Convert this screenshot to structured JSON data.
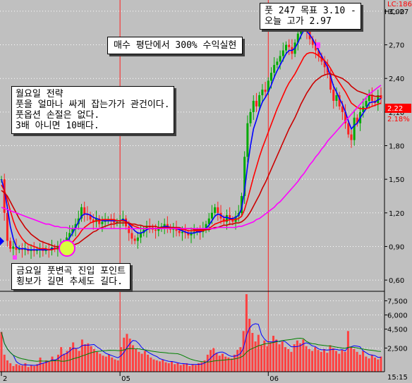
{
  "annotations": {
    "target": [
      "풋 247 목표 3.10 -",
      "오늘 고가 2.97"
    ],
    "headline": "매수 평단에서 300% 수익실현",
    "strategy": [
      "월요일 전략",
      "풋을 얼마나 싸게 잡는가가 관건이다.",
      "풋옵션 손절은 없다.",
      "3배 아니면 10배다."
    ],
    "entry": [
      "금요일 풋변곡 진입 포인트",
      "횡보가 길면 추세도 길다."
    ]
  },
  "corner_labels": {
    "lc": "LC:186",
    "hc": "HC:-27",
    "current": "2.22",
    "change": "2.18%",
    "time": "15:15"
  },
  "colors": {
    "background": "#c0c0c0",
    "grid": "#ffffff",
    "vline": "#ff2020",
    "up_candle": "#00aa00",
    "down_candle": "#ff2020",
    "ma_fast": "#0000ff",
    "ma_mid": "#ff0000",
    "ma_slow": "#cc0000",
    "ma_long": "#ff00ff",
    "volume": "#ff4040",
    "current_box": "#ff0000"
  },
  "chart_data": [
    {
      "type": "line",
      "title": "",
      "y_ticks": [
        "3,00",
        "2,70",
        "2,40",
        "2,10",
        "1,80",
        "1,50",
        "1,20",
        "0,90",
        "0,60"
      ],
      "y_tick_values": [
        3.0,
        2.7,
        2.4,
        2.1,
        1.8,
        1.5,
        1.2,
        0.9,
        0.6
      ],
      "ylim": [
        0.5,
        3.1
      ],
      "x_ticks": [
        "2",
        "05",
        "06"
      ],
      "x_tick_index": [
        0,
        40,
        90
      ],
      "grid": true,
      "candles_close": [
        1.5,
        1.2,
        0.95,
        0.88,
        0.9,
        0.87,
        0.88,
        0.87,
        0.88,
        0.86,
        0.87,
        0.86,
        0.87,
        0.88,
        0.86,
        0.88,
        0.87,
        0.89,
        0.88,
        0.9,
        0.9,
        0.93,
        0.98,
        1.02,
        1.06,
        1.1,
        1.15,
        1.25,
        1.19,
        1.18,
        1.14,
        1.12,
        1.15,
        1.1,
        1.12,
        1.13,
        1.14,
        1.13,
        1.11,
        1.12,
        1.13,
        1.15,
        1.08,
        1.02,
        0.97,
        0.95,
        0.98,
        1.02,
        1.05,
        1.08,
        1.07,
        1.05,
        1.04,
        1.06,
        1.08,
        1.1,
        1.07,
        1.05,
        1.06,
        1.04,
        1.02,
        1.03,
        1.02,
        1.0,
        1.02,
        1.03,
        1.04,
        1.03,
        1.05,
        1.1,
        1.15,
        1.2,
        1.25,
        1.2,
        1.15,
        1.12,
        1.18,
        1.14,
        1.12,
        1.17,
        1.2,
        1.35,
        1.7,
        2.0,
        2.1,
        2.2,
        2.15,
        2.25,
        2.3,
        2.28,
        2.38,
        2.45,
        2.52,
        2.55,
        2.6,
        2.65,
        2.7,
        2.68,
        2.62,
        2.72,
        2.8,
        2.85,
        2.9,
        2.82,
        2.75,
        2.7,
        2.65,
        2.6,
        2.55,
        2.5,
        2.45,
        2.3,
        2.2,
        2.25,
        2.15,
        2.1,
        2.0,
        1.9,
        1.85,
        2.05,
        2.0,
        2.1,
        2.15,
        2.2,
        2.25,
        2.2,
        2.18,
        2.25,
        2.22
      ],
      "series": [
        {
          "values": [
            1.5,
            1.4,
            1.25,
            1.08,
            0.97,
            0.9,
            0.88,
            0.88,
            0.88,
            0.87,
            0.87,
            0.87,
            0.87,
            0.87,
            0.87,
            0.87,
            0.87,
            0.88,
            0.88,
            0.88,
            0.89,
            0.91,
            0.94,
            0.98,
            1.02,
            1.07,
            1.12,
            1.17,
            1.19,
            1.19,
            1.18,
            1.16,
            1.15,
            1.14,
            1.13,
            1.13,
            1.13,
            1.13,
            1.13,
            1.13,
            1.13,
            1.14,
            1.13,
            1.1,
            1.07,
            1.04,
            1.02,
            1.02,
            1.03,
            1.05,
            1.06,
            1.06,
            1.06,
            1.06,
            1.07,
            1.08,
            1.08,
            1.07,
            1.07,
            1.06,
            1.05,
            1.04,
            1.03,
            1.02,
            1.02,
            1.02,
            1.03,
            1.03,
            1.04,
            1.06,
            1.09,
            1.13,
            1.17,
            1.19,
            1.18,
            1.16,
            1.16,
            1.15,
            1.15,
            1.16,
            1.18,
            1.24,
            1.4,
            1.62,
            1.8,
            1.95,
            2.03,
            2.12,
            2.19,
            2.23,
            2.28,
            2.34,
            2.41,
            2.47,
            2.52,
            2.57,
            2.62,
            2.65,
            2.65,
            2.67,
            2.72,
            2.78,
            2.83,
            2.82,
            2.79,
            2.75,
            2.7,
            2.65,
            2.6,
            2.55,
            2.5,
            2.42,
            2.33,
            2.28,
            2.22,
            2.17,
            2.1,
            2.02,
            1.95,
            1.98,
            2.0,
            2.05,
            2.09,
            2.13,
            2.18,
            2.19,
            2.19,
            2.21,
            2.22
          ]
        },
        {
          "values": [
            1.45,
            1.4,
            1.32,
            1.22,
            1.13,
            1.06,
            1.01,
            0.97,
            0.94,
            0.92,
            0.91,
            0.9,
            0.89,
            0.88,
            0.88,
            0.88,
            0.87,
            0.87,
            0.88,
            0.88,
            0.88,
            0.89,
            0.9,
            0.92,
            0.94,
            0.97,
            1.0,
            1.04,
            1.07,
            1.09,
            1.11,
            1.12,
            1.13,
            1.13,
            1.14,
            1.14,
            1.14,
            1.14,
            1.14,
            1.13,
            1.13,
            1.13,
            1.12,
            1.11,
            1.09,
            1.08,
            1.07,
            1.06,
            1.06,
            1.06,
            1.06,
            1.06,
            1.06,
            1.06,
            1.06,
            1.07,
            1.07,
            1.07,
            1.07,
            1.06,
            1.06,
            1.05,
            1.05,
            1.04,
            1.04,
            1.04,
            1.04,
            1.04,
            1.04,
            1.05,
            1.06,
            1.08,
            1.1,
            1.11,
            1.12,
            1.13,
            1.13,
            1.14,
            1.14,
            1.14,
            1.15,
            1.17,
            1.23,
            1.32,
            1.42,
            1.52,
            1.61,
            1.7,
            1.78,
            1.85,
            1.92,
            1.99,
            2.06,
            2.13,
            2.19,
            2.25,
            2.31,
            2.36,
            2.4,
            2.44,
            2.49,
            2.54,
            2.59,
            2.62,
            2.63,
            2.63,
            2.62,
            2.6,
            2.58,
            2.56,
            2.53,
            2.49,
            2.44,
            2.4,
            2.36,
            2.32,
            2.28,
            2.23,
            2.18,
            2.16,
            2.14,
            2.13,
            2.13,
            2.13,
            2.14,
            2.15,
            2.16,
            2.17,
            2.18
          ]
        },
        {
          "values": [
            1.4,
            1.38,
            1.35,
            1.3,
            1.25,
            1.2,
            1.15,
            1.11,
            1.07,
            1.04,
            1.01,
            0.99,
            0.97,
            0.95,
            0.94,
            0.93,
            0.92,
            0.91,
            0.9,
            0.9,
            0.9,
            0.9,
            0.9,
            0.9,
            0.91,
            0.92,
            0.93,
            0.95,
            0.97,
            0.99,
            1.01,
            1.03,
            1.04,
            1.06,
            1.07,
            1.08,
            1.09,
            1.1,
            1.1,
            1.11,
            1.11,
            1.11,
            1.11,
            1.11,
            1.1,
            1.1,
            1.09,
            1.09,
            1.08,
            1.08,
            1.08,
            1.08,
            1.08,
            1.07,
            1.07,
            1.07,
            1.07,
            1.07,
            1.07,
            1.07,
            1.07,
            1.06,
            1.06,
            1.06,
            1.06,
            1.05,
            1.05,
            1.05,
            1.05,
            1.05,
            1.05,
            1.06,
            1.07,
            1.07,
            1.08,
            1.09,
            1.09,
            1.1,
            1.1,
            1.11,
            1.11,
            1.12,
            1.14,
            1.17,
            1.21,
            1.26,
            1.31,
            1.36,
            1.42,
            1.47,
            1.53,
            1.59,
            1.65,
            1.71,
            1.77,
            1.83,
            1.89,
            1.95,
            2.0,
            2.05,
            2.11,
            2.17,
            2.22,
            2.27,
            2.31,
            2.35,
            2.38,
            2.4,
            2.42,
            2.43,
            2.44,
            2.44,
            2.43,
            2.42,
            2.41,
            2.4,
            2.38,
            2.36,
            2.33,
            2.31,
            2.29,
            2.28,
            2.27,
            2.26,
            2.25,
            2.25,
            2.24,
            2.24,
            2.24
          ]
        },
        {
          "values": [
            1.25,
            1.24,
            1.23,
            1.22,
            1.21,
            1.2,
            1.19,
            1.18,
            1.17,
            1.16,
            1.15,
            1.14,
            1.13,
            1.12,
            1.11,
            1.1,
            1.1,
            1.09,
            1.08,
            1.08,
            1.07,
            1.07,
            1.07,
            1.06,
            1.06,
            1.06,
            1.06,
            1.06,
            1.06,
            1.06,
            1.06,
            1.06,
            1.06,
            1.06,
            1.06,
            1.06,
            1.06,
            1.06,
            1.06,
            1.06,
            1.06,
            1.06,
            1.06,
            1.06,
            1.06,
            1.06,
            1.06,
            1.06,
            1.06,
            1.06,
            1.06,
            1.06,
            1.06,
            1.06,
            1.06,
            1.06,
            1.06,
            1.06,
            1.06,
            1.06,
            1.06,
            1.06,
            1.06,
            1.06,
            1.06,
            1.06,
            1.06,
            1.06,
            1.06,
            1.06,
            1.06,
            1.06,
            1.06,
            1.07,
            1.07,
            1.07,
            1.07,
            1.07,
            1.07,
            1.07,
            1.08,
            1.08,
            1.09,
            1.1,
            1.11,
            1.12,
            1.14,
            1.15,
            1.17,
            1.19,
            1.21,
            1.23,
            1.25,
            1.28,
            1.3,
            1.33,
            1.36,
            1.39,
            1.42,
            1.45,
            1.48,
            1.52,
            1.55,
            1.59,
            1.63,
            1.66,
            1.7,
            1.73,
            1.77,
            1.8,
            1.84,
            1.87,
            1.9,
            1.93,
            1.96,
            1.99,
            2.02,
            2.05,
            2.08,
            2.11,
            2.14,
            2.17,
            2.2,
            2.23,
            2.26,
            2.28,
            2.3,
            2.32,
            2.34
          ]
        }
      ]
    },
    {
      "type": "bar",
      "title": "",
      "y_ticks": [
        "7,500",
        "6,000",
        "4,500",
        "2,500"
      ],
      "y_tick_values": [
        7500,
        6000,
        4500,
        2500
      ],
      "ylim": [
        0,
        8500
      ],
      "values": [
        4200,
        1800,
        1200,
        900,
        600,
        800,
        700,
        650,
        900,
        500,
        700,
        600,
        800,
        1500,
        900,
        1200,
        1100,
        1600,
        1300,
        1800,
        2600,
        1900,
        2200,
        2600,
        3100,
        2500,
        2200,
        3400,
        2900,
        3000,
        2700,
        2400,
        2100,
        1900,
        1700,
        1600,
        1800,
        1500,
        1300,
        1200,
        2600,
        3600,
        4000,
        3500,
        2800,
        2400,
        2100,
        1900,
        2200,
        1800,
        1500,
        1300,
        1200,
        1100,
        1300,
        1000,
        900,
        1100,
        800,
        900,
        700,
        800,
        900,
        600,
        800,
        700,
        900,
        1000,
        1200,
        1800,
        2300,
        2500,
        2000,
        1700,
        1900,
        1600,
        1500,
        1400,
        1800,
        2300,
        2600,
        4300,
        8200,
        5600,
        4100,
        3200,
        3900,
        2800,
        3300,
        2700,
        3100,
        3800,
        3400,
        2900,
        3200,
        2600,
        2400,
        2100,
        2900,
        3300,
        3000,
        3400,
        2700,
        2400,
        2200,
        2600,
        2300,
        2100,
        2400,
        2000,
        2800,
        2500,
        2200,
        1900,
        2300,
        2100,
        4300,
        2600,
        2400,
        2100,
        1800,
        2200,
        1600,
        1400,
        1800,
        1500,
        1300,
        1600
      ]
    }
  ]
}
